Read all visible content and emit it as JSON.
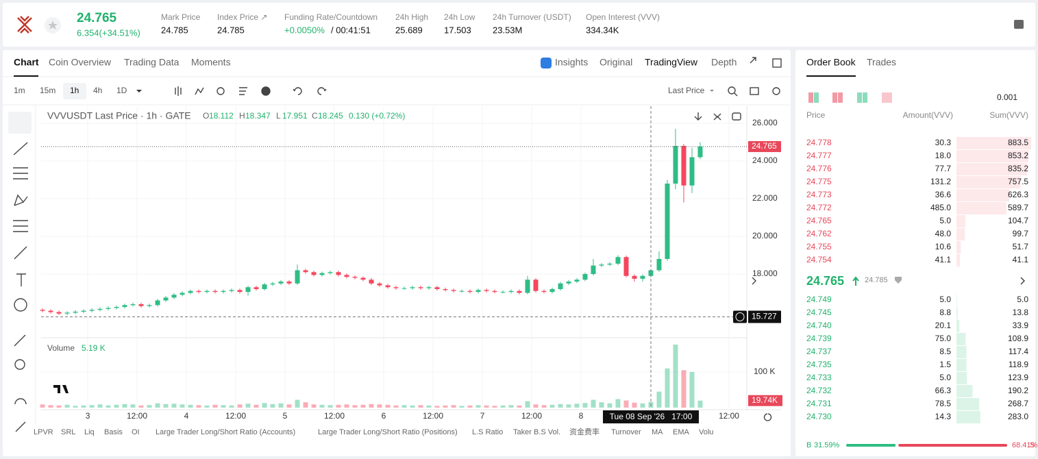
{
  "header": {
    "price": "24.765",
    "change": "6.354(+34.51%)",
    "stats": [
      {
        "label": "Mark Price",
        "value": "24.785"
      },
      {
        "label": "Index Price ↗",
        "value": "24.785"
      },
      {
        "label": "Funding Rate/Countdown",
        "value": "+0.0050%",
        "extra": "/ 00:41:51"
      },
      {
        "label": "24h High",
        "value": "25.689"
      },
      {
        "label": "24h Low",
        "value": "17.503"
      },
      {
        "label": "24h Turnover (USDT)",
        "value": "23.53M"
      },
      {
        "label": "Open Interest (VVV)",
        "value": "334.34K"
      }
    ]
  },
  "tabs": [
    "Chart",
    "Coin Overview",
    "Trading Data",
    "Moments"
  ],
  "views": [
    "Insights",
    "Original",
    "TradingView",
    "Depth"
  ],
  "intervals": [
    "1m",
    "15m",
    "1h",
    "4h",
    "1D"
  ],
  "price_type": "Last Price",
  "indicators": [
    "LPVR",
    "SRL",
    "Liq",
    "Basis",
    "OI",
    "Large Trader Long/Short Ratio (Accounts)",
    "Large Trader Long/Short Ratio (Positions)",
    "L.S Ratio",
    "Taker B.S Vol.",
    "资金费率",
    "Turnover",
    "MA",
    "EMA",
    "Volu"
  ],
  "chart_data": {
    "type": "candlestick",
    "title": "VVVUSDT Last Price · 1h · GATE",
    "ohlc": [
      {
        "label": "O",
        "value": "18.112"
      },
      {
        "label": "H",
        "value": "18.347"
      },
      {
        "label": "L",
        "value": "17.951"
      },
      {
        "label": "C",
        "value": "18.245"
      }
    ],
    "change": "0.130 (+0.72%)",
    "up_color": "#2ebd85",
    "down_color": "#f6465d",
    "xlim": [
      -0.17,
      85.67
    ],
    "xticks": [
      {
        "value": 5.5,
        "label": "3"
      },
      {
        "value": 11.5,
        "label": "12:00"
      },
      {
        "value": 17.5,
        "label": "4"
      },
      {
        "value": 23.5,
        "label": "12:00"
      },
      {
        "value": 29.5,
        "label": "5"
      },
      {
        "value": 35.5,
        "label": "12:00"
      },
      {
        "value": 41.5,
        "label": "6"
      },
      {
        "value": 47.5,
        "label": "12:00"
      },
      {
        "value": 53.5,
        "label": "7"
      },
      {
        "value": 59.5,
        "label": "12:00"
      },
      {
        "value": 65.5,
        "label": "8"
      },
      {
        "value": 83.5,
        "label": "12:00"
      }
    ],
    "ylim": [
      14.727,
      26.909
    ],
    "yticks": [
      {
        "value": 18,
        "label": "18.000"
      },
      {
        "value": 20,
        "label": "20.000"
      },
      {
        "value": 22,
        "label": "22.000"
      },
      {
        "value": 24,
        "label": "24.000"
      },
      {
        "value": 26,
        "label": "26.000"
      }
    ],
    "last_price": 24.765,
    "crosshair": {
      "x": 74,
      "x_label": "Tue 08 Sep '26   17:00",
      "y": 15.727
    },
    "candles": [
      [
        16.1,
        16.18,
        15.97,
        16.05
      ],
      [
        16.05,
        16.13,
        15.9,
        15.98
      ],
      [
        15.98,
        16.06,
        15.82,
        15.9
      ],
      [
        15.9,
        16.03,
        15.82,
        15.95
      ],
      [
        15.95,
        16.08,
        15.87,
        16.0
      ],
      [
        16.0,
        16.13,
        15.92,
        16.05
      ],
      [
        16.05,
        16.18,
        15.97,
        16.1
      ],
      [
        16.1,
        16.23,
        16.02,
        16.15
      ],
      [
        16.15,
        16.28,
        16.07,
        16.2
      ],
      [
        16.2,
        16.33,
        16.12,
        16.25
      ],
      [
        16.25,
        16.43,
        16.17,
        16.35
      ],
      [
        16.35,
        16.48,
        16.27,
        16.4
      ],
      [
        16.4,
        16.48,
        16.22,
        16.3
      ],
      [
        16.3,
        16.43,
        16.22,
        16.35
      ],
      [
        16.35,
        16.68,
        16.27,
        16.6
      ],
      [
        16.6,
        16.83,
        16.52,
        16.75
      ],
      [
        16.75,
        16.98,
        16.67,
        16.9
      ],
      [
        16.9,
        17.08,
        16.82,
        17.0
      ],
      [
        17.0,
        17.18,
        16.92,
        17.1
      ],
      [
        17.1,
        17.18,
        16.97,
        17.05
      ],
      [
        17.05,
        17.18,
        16.97,
        17.1
      ],
      [
        17.1,
        17.18,
        16.97,
        17.05
      ],
      [
        17.05,
        17.18,
        16.97,
        17.1
      ],
      [
        17.1,
        17.23,
        17.02,
        17.15
      ],
      [
        17.15,
        17.23,
        16.97,
        17.05
      ],
      [
        17.05,
        17.38,
        16.85,
        17.3
      ],
      [
        17.3,
        17.38,
        17.12,
        17.2
      ],
      [
        17.2,
        17.53,
        17.12,
        17.45
      ],
      [
        17.45,
        17.58,
        17.37,
        17.5
      ],
      [
        17.5,
        17.68,
        17.42,
        17.6
      ],
      [
        17.6,
        17.68,
        17.42,
        17.5
      ],
      [
        17.5,
        18.5,
        17.42,
        18.2
      ],
      [
        18.2,
        18.28,
        18.02,
        18.1
      ],
      [
        18.1,
        18.18,
        17.87,
        17.95
      ],
      [
        17.95,
        18.13,
        17.87,
        18.05
      ],
      [
        18.05,
        18.18,
        17.97,
        18.1
      ],
      [
        18.1,
        18.18,
        17.87,
        17.95
      ],
      [
        17.95,
        18.03,
        17.77,
        17.85
      ],
      [
        17.85,
        17.93,
        17.72,
        17.8
      ],
      [
        17.8,
        17.88,
        17.62,
        17.7
      ],
      [
        17.7,
        17.78,
        17.42,
        17.5
      ],
      [
        17.5,
        17.58,
        17.32,
        17.4
      ],
      [
        17.4,
        17.48,
        17.22,
        17.3
      ],
      [
        17.3,
        17.38,
        17.17,
        17.25
      ],
      [
        17.25,
        17.33,
        17.17,
        17.25
      ],
      [
        17.25,
        17.38,
        17.17,
        17.3
      ],
      [
        17.3,
        17.38,
        17.17,
        17.25
      ],
      [
        17.25,
        17.38,
        17.17,
        17.3
      ],
      [
        17.3,
        17.38,
        17.12,
        17.2
      ],
      [
        17.2,
        17.28,
        17.07,
        17.15
      ],
      [
        17.15,
        17.23,
        17.02,
        17.1
      ],
      [
        17.1,
        17.18,
        17.02,
        17.1
      ],
      [
        17.1,
        17.18,
        16.97,
        17.05
      ],
      [
        17.05,
        17.23,
        16.97,
        17.15
      ],
      [
        17.15,
        17.23,
        17.02,
        17.1
      ],
      [
        17.1,
        17.18,
        16.97,
        17.05
      ],
      [
        17.05,
        17.13,
        16.97,
        17.05
      ],
      [
        17.05,
        17.18,
        16.97,
        17.1
      ],
      [
        17.1,
        17.18,
        16.92,
        17.0
      ],
      [
        17.0,
        17.9,
        16.92,
        17.7
      ],
      [
        17.7,
        17.78,
        17.02,
        17.1
      ],
      [
        17.1,
        17.18,
        16.97,
        17.05
      ],
      [
        17.05,
        17.28,
        16.97,
        17.2
      ],
      [
        17.2,
        17.58,
        17.12,
        17.5
      ],
      [
        17.5,
        17.68,
        17.42,
        17.6
      ],
      [
        17.6,
        17.78,
        17.52,
        17.7
      ],
      [
        17.7,
        18.08,
        17.62,
        18.0
      ],
      [
        18.0,
        18.8,
        17.92,
        18.45
      ],
      [
        18.45,
        18.58,
        18.37,
        18.5
      ],
      [
        18.5,
        18.63,
        18.42,
        18.55
      ],
      [
        18.55,
        19.0,
        18.47,
        18.9
      ],
      [
        18.9,
        18.98,
        17.82,
        17.9
      ],
      [
        17.9,
        17.98,
        17.6,
        17.75
      ],
      [
        17.75,
        17.98,
        17.6,
        17.9
      ],
      [
        17.9,
        18.28,
        17.82,
        18.2
      ],
      [
        18.2,
        19.2,
        18.12,
        18.8
      ],
      [
        18.8,
        23.0,
        18.7,
        22.8
      ],
      [
        22.8,
        25.7,
        22.5,
        24.8
      ],
      [
        24.8,
        24.9,
        21.8,
        22.7
      ],
      [
        22.7,
        24.7,
        22.3,
        24.2
      ],
      [
        24.2,
        25.0,
        24.1,
        24.765
      ]
    ],
    "volume": {
      "title": "Volume",
      "legend": "5.19 K",
      "ylim": [
        0,
        192300
      ],
      "yticks": [
        {
          "value": 100000,
          "label": "100 K"
        }
      ],
      "last": {
        "value": 19740,
        "label": "19.74K"
      },
      "values": [
        9000,
        7000,
        6000,
        8000,
        5000,
        6000,
        7000,
        9000,
        6000,
        8000,
        10000,
        9000,
        6000,
        7000,
        12000,
        10000,
        11000,
        9000,
        8000,
        7000,
        6000,
        8000,
        7000,
        6000,
        9000,
        11000,
        8000,
        13000,
        10000,
        12000,
        9000,
        22000,
        15000,
        9000,
        8000,
        7000,
        8000,
        9000,
        7000,
        8000,
        10000,
        9000,
        8000,
        6000,
        7000,
        6000,
        7000,
        6000,
        5000,
        6000,
        7000,
        5000,
        6000,
        7000,
        6000,
        5000,
        6000,
        7000,
        6000,
        18000,
        9000,
        7000,
        8000,
        10000,
        9000,
        11000,
        13000,
        22000,
        15000,
        12000,
        24000,
        20000,
        14000,
        12000,
        16000,
        45000,
        110000,
        177000,
        105000,
        100000,
        19740
      ]
    }
  },
  "order_book": {
    "tabs": [
      "Order Book",
      "Trades"
    ],
    "precision": "0.001",
    "columns": [
      "Price",
      "Amount(VVV)",
      "Sum(VVV)"
    ],
    "asks": [
      {
        "price": "24.778",
        "amount": "30.3",
        "sum": "883.5"
      },
      {
        "price": "24.777",
        "amount": "18.0",
        "sum": "853.2"
      },
      {
        "price": "24.776",
        "amount": "77.7",
        "sum": "835.2"
      },
      {
        "price": "24.775",
        "amount": "131.2",
        "sum": "757.5"
      },
      {
        "price": "24.773",
        "amount": "36.6",
        "sum": "626.3"
      },
      {
        "price": "24.772",
        "amount": "485.0",
        "sum": "589.7"
      },
      {
        "price": "24.765",
        "amount": "5.0",
        "sum": "104.7"
      },
      {
        "price": "24.762",
        "amount": "48.0",
        "sum": "99.7"
      },
      {
        "price": "24.755",
        "amount": "10.6",
        "sum": "51.7"
      },
      {
        "price": "24.754",
        "amount": "41.1",
        "sum": "41.1"
      }
    ],
    "mid": {
      "price": "24.765",
      "mark": "24.785"
    },
    "bids": [
      {
        "price": "24.749",
        "amount": "5.0",
        "sum": "5.0"
      },
      {
        "price": "24.745",
        "amount": "8.8",
        "sum": "13.8"
      },
      {
        "price": "24.740",
        "amount": "20.1",
        "sum": "33.9"
      },
      {
        "price": "24.739",
        "amount": "75.0",
        "sum": "108.9"
      },
      {
        "price": "24.737",
        "amount": "8.5",
        "sum": "117.4"
      },
      {
        "price": "24.735",
        "amount": "1.5",
        "sum": "118.9"
      },
      {
        "price": "24.733",
        "amount": "5.0",
        "sum": "123.9"
      },
      {
        "price": "24.732",
        "amount": "66.3",
        "sum": "190.2"
      },
      {
        "price": "24.731",
        "amount": "78.5",
        "sum": "268.7"
      },
      {
        "price": "24.730",
        "amount": "14.3",
        "sum": "283.0"
      }
    ],
    "buy": {
      "letter": "B",
      "value": 31.59,
      "label": "31.59%"
    },
    "sell": {
      "letter": "S",
      "value": 68.41,
      "label": "68.41%"
    }
  }
}
